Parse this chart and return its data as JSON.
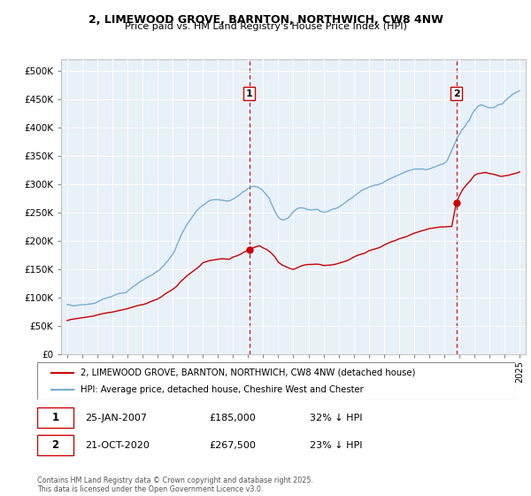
{
  "title1": "2, LIMEWOOD GROVE, BARNTON, NORTHWICH, CW8 4NW",
  "title2": "Price paid vs. HM Land Registry's House Price Index (HPI)",
  "hpi_label": "HPI: Average price, detached house, Cheshire West and Chester",
  "prop_label": "2, LIMEWOOD GROVE, BARNTON, NORTHWICH, CW8 4NW (detached house)",
  "copyright": "Contains HM Land Registry data © Crown copyright and database right 2025.\nThis data is licensed under the Open Government Licence v3.0.",
  "annotation1": {
    "num": "1",
    "date": "25-JAN-2007",
    "price": "£185,000",
    "hpi": "32% ↓ HPI",
    "x_year": 2007.07
  },
  "annotation2": {
    "num": "2",
    "date": "21-OCT-2020",
    "price": "£267,500",
    "hpi": "23% ↓ HPI",
    "x_year": 2020.8
  },
  "prop_color": "#cc0000",
  "hpi_color": "#74afd3",
  "bg_color": "#e8f0f8",
  "fig_bg": "#ffffff",
  "ylim": [
    0,
    520000
  ],
  "xlim_start": 1994.6,
  "xlim_end": 2025.4,
  "yticks": [
    0,
    50000,
    100000,
    150000,
    200000,
    250000,
    300000,
    350000,
    400000,
    450000,
    500000
  ],
  "xticks": [
    1995,
    1996,
    1997,
    1998,
    1999,
    2000,
    2001,
    2002,
    2003,
    2004,
    2005,
    2006,
    2007,
    2008,
    2009,
    2010,
    2011,
    2012,
    2013,
    2014,
    2015,
    2016,
    2017,
    2018,
    2019,
    2020,
    2021,
    2022,
    2023,
    2024,
    2025
  ],
  "hpi_data": {
    "years": [
      1995.0,
      1995.083,
      1995.167,
      1995.25,
      1995.333,
      1995.417,
      1995.5,
      1995.583,
      1995.667,
      1995.75,
      1995.833,
      1995.917,
      1996.0,
      1996.083,
      1996.167,
      1996.25,
      1996.333,
      1996.417,
      1996.5,
      1996.583,
      1996.667,
      1996.75,
      1996.833,
      1996.917,
      1997.0,
      1997.083,
      1997.167,
      1997.25,
      1997.333,
      1997.417,
      1997.5,
      1997.583,
      1997.667,
      1997.75,
      1997.833,
      1997.917,
      1998.0,
      1998.083,
      1998.167,
      1998.25,
      1998.333,
      1998.417,
      1998.5,
      1998.583,
      1998.667,
      1998.75,
      1998.833,
      1998.917,
      1999.0,
      1999.083,
      1999.167,
      1999.25,
      1999.333,
      1999.417,
      1999.5,
      1999.583,
      1999.667,
      1999.75,
      1999.833,
      1999.917,
      2000.0,
      2000.083,
      2000.167,
      2000.25,
      2000.333,
      2000.417,
      2000.5,
      2000.583,
      2000.667,
      2000.75,
      2000.833,
      2000.917,
      2001.0,
      2001.083,
      2001.167,
      2001.25,
      2001.333,
      2001.417,
      2001.5,
      2001.583,
      2001.667,
      2001.75,
      2001.833,
      2001.917,
      2002.0,
      2002.083,
      2002.167,
      2002.25,
      2002.333,
      2002.417,
      2002.5,
      2002.583,
      2002.667,
      2002.75,
      2002.833,
      2002.917,
      2003.0,
      2003.083,
      2003.167,
      2003.25,
      2003.333,
      2003.417,
      2003.5,
      2003.583,
      2003.667,
      2003.75,
      2003.833,
      2003.917,
      2004.0,
      2004.083,
      2004.167,
      2004.25,
      2004.333,
      2004.417,
      2004.5,
      2004.583,
      2004.667,
      2004.75,
      2004.833,
      2004.917,
      2005.0,
      2005.083,
      2005.167,
      2005.25,
      2005.333,
      2005.417,
      2005.5,
      2005.583,
      2005.667,
      2005.75,
      2005.833,
      2005.917,
      2006.0,
      2006.083,
      2006.167,
      2006.25,
      2006.333,
      2006.417,
      2006.5,
      2006.583,
      2006.667,
      2006.75,
      2006.833,
      2006.917,
      2007.0,
      2007.083,
      2007.167,
      2007.25,
      2007.333,
      2007.417,
      2007.5,
      2007.583,
      2007.667,
      2007.75,
      2007.833,
      2007.917,
      2008.0,
      2008.083,
      2008.167,
      2008.25,
      2008.333,
      2008.417,
      2008.5,
      2008.583,
      2008.667,
      2008.75,
      2008.833,
      2008.917,
      2009.0,
      2009.083,
      2009.167,
      2009.25,
      2009.333,
      2009.417,
      2009.5,
      2009.583,
      2009.667,
      2009.75,
      2009.833,
      2009.917,
      2010.0,
      2010.083,
      2010.167,
      2010.25,
      2010.333,
      2010.417,
      2010.5,
      2010.583,
      2010.667,
      2010.75,
      2010.833,
      2010.917,
      2011.0,
      2011.083,
      2011.167,
      2011.25,
      2011.333,
      2011.417,
      2011.5,
      2011.583,
      2011.667,
      2011.75,
      2011.833,
      2011.917,
      2012.0,
      2012.083,
      2012.167,
      2012.25,
      2012.333,
      2012.417,
      2012.5,
      2012.583,
      2012.667,
      2012.75,
      2012.833,
      2012.917,
      2013.0,
      2013.083,
      2013.167,
      2013.25,
      2013.333,
      2013.417,
      2013.5,
      2013.583,
      2013.667,
      2013.75,
      2013.833,
      2013.917,
      2014.0,
      2014.083,
      2014.167,
      2014.25,
      2014.333,
      2014.417,
      2014.5,
      2014.583,
      2014.667,
      2014.75,
      2014.833,
      2014.917,
      2015.0,
      2015.083,
      2015.167,
      2015.25,
      2015.333,
      2015.417,
      2015.5,
      2015.583,
      2015.667,
      2015.75,
      2015.833,
      2015.917,
      2016.0,
      2016.083,
      2016.167,
      2016.25,
      2016.333,
      2016.417,
      2016.5,
      2016.583,
      2016.667,
      2016.75,
      2016.833,
      2016.917,
      2017.0,
      2017.083,
      2017.167,
      2017.25,
      2017.333,
      2017.417,
      2017.5,
      2017.583,
      2017.667,
      2017.75,
      2017.833,
      2017.917,
      2018.0,
      2018.083,
      2018.167,
      2018.25,
      2018.333,
      2018.417,
      2018.5,
      2018.583,
      2018.667,
      2018.75,
      2018.833,
      2018.917,
      2019.0,
      2019.083,
      2019.167,
      2019.25,
      2019.333,
      2019.417,
      2019.5,
      2019.583,
      2019.667,
      2019.75,
      2019.833,
      2019.917,
      2020.0,
      2020.083,
      2020.167,
      2020.25,
      2020.333,
      2020.417,
      2020.5,
      2020.583,
      2020.667,
      2020.75,
      2020.833,
      2020.917,
      2021.0,
      2021.083,
      2021.167,
      2021.25,
      2021.333,
      2021.417,
      2021.5,
      2021.583,
      2021.667,
      2021.75,
      2021.833,
      2021.917,
      2022.0,
      2022.083,
      2022.167,
      2022.25,
      2022.333,
      2022.417,
      2022.5,
      2022.583,
      2022.667,
      2022.75,
      2022.833,
      2022.917,
      2023.0,
      2023.083,
      2023.167,
      2023.25,
      2023.333,
      2023.417,
      2023.5,
      2023.583,
      2023.667,
      2023.75,
      2023.833,
      2023.917,
      2024.0,
      2024.083,
      2024.167,
      2024.25,
      2024.333,
      2024.417,
      2024.5,
      2024.583,
      2024.667,
      2024.75,
      2024.833,
      2024.917,
      2025.0
    ],
    "values": [
      88000,
      88500,
      87500,
      87000,
      86500,
      86000,
      86000,
      86500,
      87000,
      87000,
      87500,
      87800,
      88000,
      88200,
      88000,
      88000,
      88500,
      89000,
      89000,
      89500,
      90000,
      90000,
      90500,
      91500,
      93000,
      94000,
      95000,
      96000,
      97500,
      98500,
      99000,
      99500,
      100000,
      101000,
      101500,
      102000,
      103000,
      104000,
      105000,
      106000,
      107000,
      107500,
      108000,
      108500,
      108500,
      109000,
      109000,
      109500,
      112000,
      113500,
      115000,
      117000,
      119000,
      120500,
      122000,
      123500,
      125000,
      127000,
      128500,
      130000,
      131000,
      132500,
      134000,
      135000,
      136500,
      137500,
      139000,
      140000,
      141000,
      143000,
      144500,
      146000,
      147000,
      148500,
      150000,
      153000,
      155000,
      157000,
      160000,
      163000,
      165000,
      168000,
      171000,
      174000,
      177000,
      181000,
      185000,
      191000,
      196000,
      201000,
      207000,
      212000,
      216000,
      220000,
      224000,
      228000,
      231000,
      234500,
      237500,
      241000,
      244000,
      247000,
      251000,
      253500,
      255500,
      258000,
      260000,
      261500,
      263000,
      264500,
      266000,
      268000,
      269500,
      271000,
      272000,
      272500,
      272500,
      273000,
      273000,
      273000,
      273000,
      273000,
      272500,
      272000,
      272000,
      271500,
      271000,
      271000,
      271000,
      271000,
      272000,
      273000,
      274000,
      275500,
      277000,
      278000,
      280000,
      281500,
      283000,
      285000,
      287000,
      288000,
      289000,
      291000,
      293000,
      294500,
      295500,
      296000,
      296500,
      296500,
      296000,
      295500,
      295000,
      293000,
      292000,
      291000,
      288000,
      285500,
      283000,
      280000,
      277500,
      275000,
      268000,
      264000,
      259000,
      254000,
      250000,
      246000,
      242000,
      240000,
      238500,
      238000,
      237500,
      238000,
      239000,
      240000,
      241000,
      244000,
      246000,
      249000,
      252000,
      253500,
      255500,
      257000,
      258000,
      258500,
      259000,
      258500,
      258000,
      258000,
      257000,
      256000,
      255000,
      255000,
      255000,
      255000,
      255500,
      255500,
      256000,
      256000,
      255500,
      253000,
      252000,
      252000,
      251000,
      251000,
      251500,
      252000,
      253000,
      254000,
      255000,
      256000,
      257000,
      257000,
      258000,
      258500,
      260000,
      261500,
      263000,
      264000,
      266000,
      267500,
      269000,
      271000,
      273000,
      274000,
      275500,
      276500,
      279000,
      280500,
      282000,
      284000,
      285500,
      287000,
      289000,
      290000,
      291000,
      292000,
      293000,
      293500,
      295000,
      296000,
      297000,
      297000,
      298000,
      299000,
      299000,
      299500,
      300000,
      301000,
      301500,
      302000,
      304000,
      305500,
      306500,
      308000,
      309000,
      310000,
      311000,
      312000,
      313000,
      314000,
      315000,
      316000,
      317000,
      318000,
      319000,
      320000,
      321000,
      322000,
      323000,
      323500,
      324000,
      325000,
      325500,
      326000,
      327000,
      327000,
      327000,
      327000,
      327000,
      327000,
      327000,
      327000,
      326500,
      326000,
      326000,
      326500,
      327000,
      328000,
      328500,
      330000,
      330500,
      331000,
      332000,
      333000,
      334000,
      335000,
      335500,
      336000,
      337000,
      339000,
      341000,
      345000,
      350000,
      355000,
      360000,
      365000,
      370000,
      375000,
      381000,
      384500,
      388000,
      392000,
      396000,
      398000,
      401000,
      404000,
      408000,
      411000,
      413000,
      418000,
      423000,
      427000,
      430000,
      433000,
      435000,
      438000,
      439000,
      440000,
      440000,
      439000,
      438000,
      437000,
      436000,
      435500,
      435000,
      435000,
      435500,
      435000,
      436000,
      437000,
      439000,
      440000,
      441000,
      441000,
      441500,
      443000,
      447000,
      448500,
      450000,
      453000,
      454000,
      456000,
      458000,
      459500,
      460500,
      462000,
      463000,
      464000,
      465000
    ]
  },
  "prop_data": {
    "years": [
      1995.0,
      1995.25,
      1995.5,
      1995.75,
      1996.0,
      1996.25,
      1996.5,
      1996.75,
      1997.0,
      1997.25,
      1997.5,
      1997.75,
      1998.0,
      1998.25,
      1998.5,
      1998.75,
      1999.0,
      1999.25,
      1999.5,
      1999.75,
      2000.0,
      2000.25,
      2000.5,
      2000.75,
      2001.0,
      2001.25,
      2001.5,
      2001.75,
      2002.0,
      2002.25,
      2002.5,
      2002.75,
      2003.0,
      2003.25,
      2003.5,
      2003.75,
      2004.0,
      2004.25,
      2004.5,
      2004.75,
      2005.0,
      2005.25,
      2005.5,
      2005.75,
      2006.0,
      2006.25,
      2006.5,
      2006.75,
      2007.07,
      2007.5,
      2007.75,
      2008.0,
      2008.25,
      2008.5,
      2008.75,
      2009.0,
      2009.25,
      2009.5,
      2009.75,
      2010.0,
      2010.25,
      2010.5,
      2010.75,
      2011.0,
      2011.25,
      2011.5,
      2011.75,
      2012.0,
      2012.25,
      2012.5,
      2012.75,
      2013.0,
      2013.25,
      2013.5,
      2013.75,
      2014.0,
      2014.25,
      2014.5,
      2014.75,
      2015.0,
      2015.25,
      2015.5,
      2015.75,
      2016.0,
      2016.25,
      2016.5,
      2016.75,
      2017.0,
      2017.25,
      2017.5,
      2017.75,
      2018.0,
      2018.25,
      2018.5,
      2018.75,
      2019.0,
      2019.25,
      2019.5,
      2019.75,
      2020.0,
      2020.25,
      2020.5,
      2020.8,
      2021.0,
      2021.25,
      2021.5,
      2021.75,
      2022.0,
      2022.25,
      2022.5,
      2022.75,
      2023.0,
      2023.25,
      2023.5,
      2023.75,
      2024.0,
      2024.25,
      2024.5,
      2024.75,
      2025.0
    ],
    "values": [
      60000,
      62000,
      63000,
      64000,
      65000,
      66000,
      67000,
      68000,
      70000,
      71500,
      73000,
      74000,
      75000,
      76500,
      78000,
      79500,
      81000,
      83000,
      85000,
      87000,
      88000,
      90000,
      93000,
      95500,
      98000,
      102000,
      107000,
      111000,
      115000,
      120000,
      128000,
      134000,
      140000,
      145000,
      150000,
      155000,
      162000,
      164000,
      166000,
      167000,
      168000,
      169000,
      168500,
      168000,
      172000,
      174000,
      177000,
      181000,
      185000,
      190000,
      192000,
      188000,
      185000,
      180000,
      173000,
      163000,
      158000,
      155000,
      152000,
      150000,
      153000,
      156000,
      158000,
      159000,
      159000,
      159500,
      159000,
      157000,
      157500,
      158000,
      159000,
      161000,
      163000,
      165000,
      168000,
      172000,
      175000,
      177000,
      179000,
      183000,
      185000,
      187000,
      189000,
      193000,
      196000,
      199000,
      201000,
      204000,
      206000,
      208000,
      211000,
      214000,
      216000,
      218000,
      220000,
      222000,
      223000,
      224000,
      225000,
      225000,
      225500,
      226000,
      267500,
      280000,
      292000,
      300000,
      307000,
      316000,
      319000,
      320000,
      321000,
      319000,
      318000,
      316000,
      314000,
      315000,
      316000,
      318000,
      319500,
      322000
    ]
  }
}
